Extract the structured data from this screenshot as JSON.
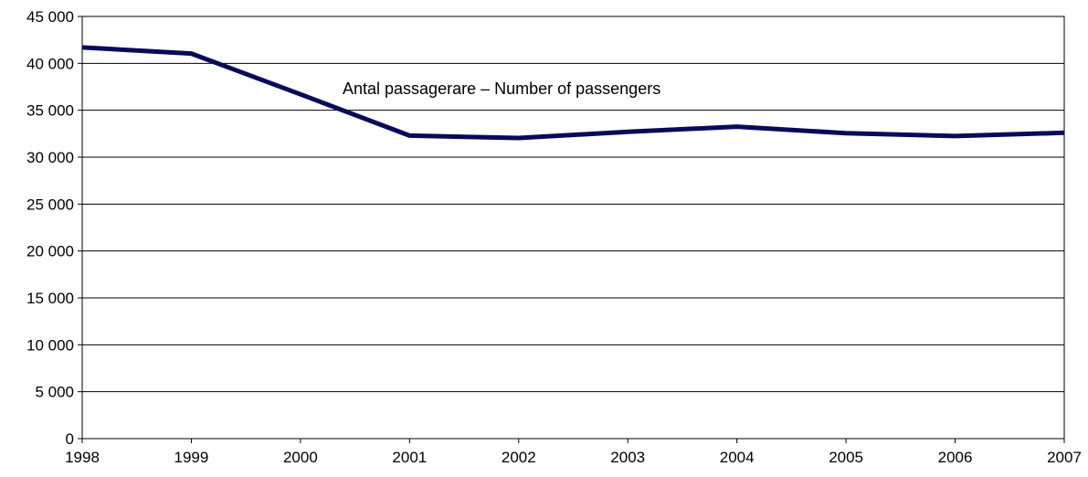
{
  "chart_data": {
    "type": "line",
    "x": [
      "1998",
      "1999",
      "2000",
      "2001",
      "2002",
      "2003",
      "2004",
      "2005",
      "2006",
      "2007"
    ],
    "series": [
      {
        "name": "Antal passagerare – Number of passengers",
        "values": [
          41700,
          41050,
          36700,
          32300,
          32050,
          32700,
          33250,
          32550,
          32250,
          32600
        ],
        "color": "#0a0a5c"
      }
    ],
    "yticks": [
      0,
      5000,
      10000,
      15000,
      20000,
      25000,
      30000,
      35000,
      40000,
      45000
    ],
    "ytick_labels": [
      "0",
      "5 000",
      "10 000",
      "15 000",
      "20 000",
      "25 000",
      "30 000",
      "35 000",
      "40 000",
      "45 000"
    ],
    "ylim": [
      0,
      45000
    ],
    "grid": true,
    "title": "",
    "xlabel": "",
    "ylabel": ""
  }
}
